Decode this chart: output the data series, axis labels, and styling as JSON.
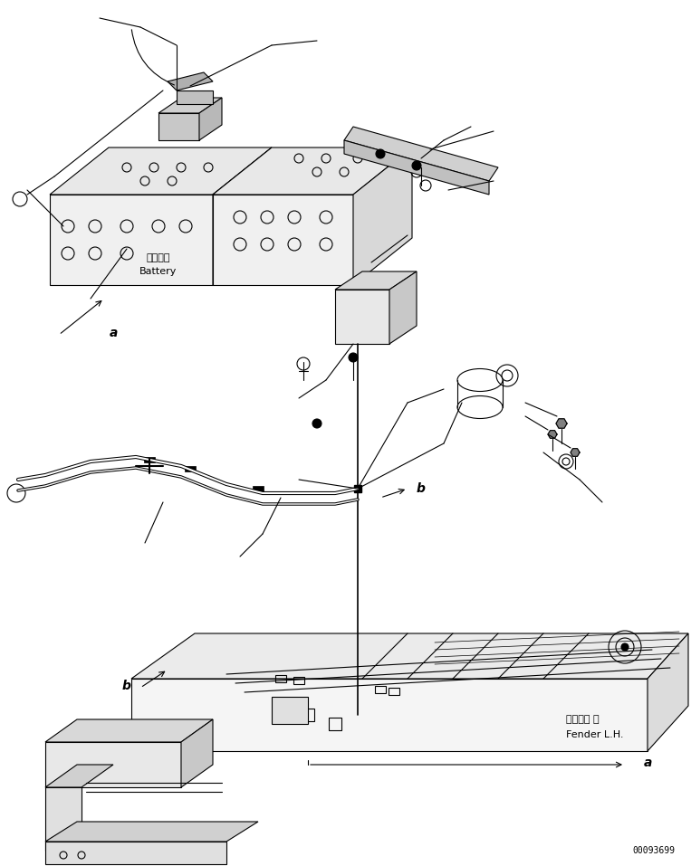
{
  "bg_color": "#ffffff",
  "line_color": "#000000",
  "fig_width": 7.63,
  "fig_height": 9.57,
  "dpi": 100,
  "part_number": "00093699",
  "labels": {
    "battery_jp": "バッテリ",
    "battery_en": "Battery",
    "fender_jp": "フェンダ 左",
    "fender_en": "Fender L.H.",
    "label_a": "a",
    "label_b": "b"
  }
}
